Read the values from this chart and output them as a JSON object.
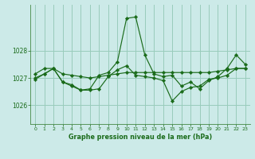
{
  "background_color": "#cceae8",
  "grid_color": "#99ccbb",
  "line_color": "#1a6b1a",
  "marker_color": "#1a6b1a",
  "title": "Graphe pression niveau de la mer (hPa)",
  "xlim": [
    -0.5,
    23.5
  ],
  "ylim": [
    1025.3,
    1029.7
  ],
  "yticks": [
    1026,
    1027,
    1028
  ],
  "xticks": [
    0,
    1,
    2,
    3,
    4,
    5,
    6,
    7,
    8,
    9,
    10,
    11,
    12,
    13,
    14,
    15,
    16,
    17,
    18,
    19,
    20,
    21,
    22,
    23
  ],
  "series1": [
    1026.95,
    1027.15,
    1027.35,
    1026.85,
    1026.75,
    1026.55,
    1026.6,
    1027.1,
    1027.2,
    1027.6,
    1029.2,
    1029.25,
    1027.85,
    1027.15,
    1027.05,
    1027.1,
    1026.7,
    1026.85,
    1026.6,
    1026.9,
    1027.05,
    1027.35,
    1027.85,
    1027.5
  ],
  "series2": [
    1027.15,
    1027.35,
    1027.35,
    1027.15,
    1027.1,
    1027.05,
    1027.0,
    1027.05,
    1027.1,
    1027.15,
    1027.2,
    1027.2,
    1027.2,
    1027.2,
    1027.2,
    1027.2,
    1027.2,
    1027.2,
    1027.2,
    1027.2,
    1027.25,
    1027.3,
    1027.35,
    1027.35
  ],
  "series3": [
    1027.0,
    1027.15,
    1027.35,
    1026.85,
    1026.7,
    1026.55,
    1026.55,
    1026.6,
    1027.05,
    1027.3,
    1027.45,
    1027.1,
    1027.05,
    1027.0,
    1026.9,
    1026.15,
    1026.5,
    1026.65,
    1026.7,
    1026.95,
    1027.0,
    1027.1,
    1027.35,
    1027.35
  ]
}
